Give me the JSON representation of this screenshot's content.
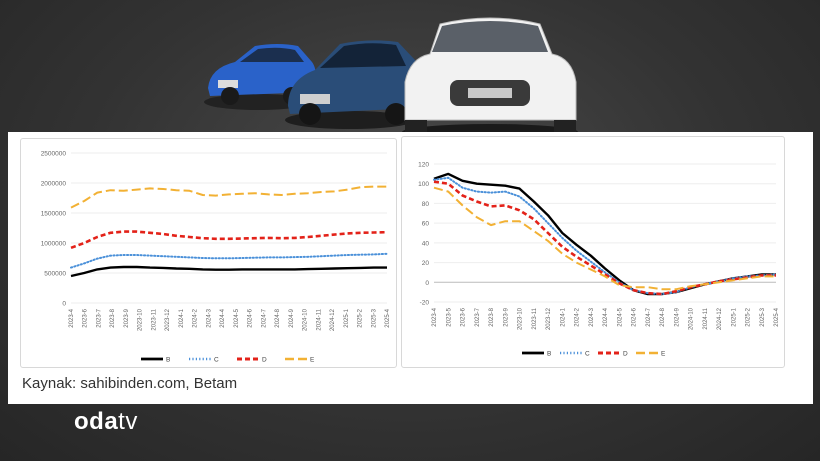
{
  "source_text": "Kaynak: sahibinden.com, Betam",
  "logo": {
    "part1": "oda",
    "part2": "tv"
  },
  "colors": {
    "B": "#000000",
    "C": "#4a90d9",
    "D": "#e32219",
    "E": "#f2b134"
  },
  "chart_data": [
    {
      "type": "line",
      "title": "",
      "x": [
        "2023-4",
        "2023-5",
        "2023-6",
        "2023-7",
        "2023-8",
        "2023-9",
        "2023-10",
        "2023-11",
        "2023-12",
        "2024-1",
        "2024-2",
        "2024-3",
        "2024-4",
        "2024-5",
        "2024-6",
        "2024-7",
        "2024-8",
        "2024-9",
        "2024-10",
        "2024-11",
        "2024-12",
        "2025-1",
        "2025-2",
        "2025-3",
        "2025-4"
      ],
      "x_tick_labels": [
        "2023-4",
        "2023-6",
        "2023-7",
        "2023-8",
        "2023-9",
        "2023-10",
        "2023-11",
        "2023-12",
        "2024-1",
        "2024-2",
        "2024-3",
        "2024-4",
        "2024-5",
        "2024-6",
        "2024-7",
        "2024-8",
        "2024-9",
        "2024-10",
        "2024-11",
        "2024-12",
        "2025-1",
        "2025-2",
        "2025-3",
        "2025-4"
      ],
      "yticks": [
        "0",
        "500000",
        "1000000",
        "1500000",
        "2000000",
        "2500000"
      ],
      "ylim": [
        0,
        2500000
      ],
      "legend_position": "bottom",
      "series": [
        {
          "name": "B",
          "style": "solid",
          "values": [
            450000,
            500000,
            560000,
            590000,
            600000,
            600000,
            590000,
            585000,
            575000,
            570000,
            560000,
            555000,
            555000,
            560000,
            560000,
            560000,
            560000,
            560000,
            565000,
            570000,
            575000,
            580000,
            585000,
            590000,
            590000
          ]
        },
        {
          "name": "C",
          "style": "dotted",
          "values": [
            590000,
            660000,
            740000,
            790000,
            800000,
            800000,
            790000,
            780000,
            770000,
            760000,
            750000,
            745000,
            745000,
            750000,
            755000,
            760000,
            760000,
            765000,
            770000,
            780000,
            790000,
            800000,
            805000,
            810000,
            820000
          ]
        },
        {
          "name": "D",
          "style": "dashed",
          "values": [
            920000,
            1000000,
            1100000,
            1170000,
            1190000,
            1190000,
            1170000,
            1150000,
            1120000,
            1100000,
            1080000,
            1070000,
            1070000,
            1075000,
            1080000,
            1085000,
            1080000,
            1085000,
            1100000,
            1120000,
            1140000,
            1160000,
            1170000,
            1175000,
            1180000
          ]
        },
        {
          "name": "E",
          "style": "longdash",
          "values": [
            1590000,
            1700000,
            1840000,
            1880000,
            1870000,
            1890000,
            1910000,
            1900000,
            1880000,
            1870000,
            1800000,
            1790000,
            1810000,
            1820000,
            1830000,
            1810000,
            1800000,
            1820000,
            1830000,
            1850000,
            1860000,
            1890000,
            1930000,
            1940000,
            1940000
          ]
        }
      ]
    },
    {
      "type": "line",
      "title": "",
      "x": [
        "2023-4",
        "2023-5",
        "2023-6",
        "2023-7",
        "2023-8",
        "2023-9",
        "2023-10",
        "2023-11",
        "2023-12",
        "2024-1",
        "2024-2",
        "2024-3",
        "2024-4",
        "2024-5",
        "2024-6",
        "2024-7",
        "2024-8",
        "2024-9",
        "2024-10",
        "2024-11",
        "2024-12",
        "2025-1",
        "2025-2",
        "2025-3",
        "2025-4"
      ],
      "x_tick_labels": [
        "2023-4",
        "2023-5",
        "2023-6",
        "2023-7",
        "2023-8",
        "2023-9",
        "2023-10",
        "2023-11",
        "2023-12",
        "2024-1",
        "2024-2",
        "2024-3",
        "2024-4",
        "2024-5",
        "2024-6",
        "2024-7",
        "2024-8",
        "2024-9",
        "2024-10",
        "2024-11",
        "2024-12",
        "2025-1",
        "2025-2",
        "2025-3",
        "2025-4"
      ],
      "yticks": [
        "-20",
        "0",
        "20",
        "40",
        "60",
        "80",
        "100",
        "120"
      ],
      "ylim": [
        -20,
        120
      ],
      "legend_position": "bottom",
      "series": [
        {
          "name": "B",
          "style": "solid",
          "values": [
            105,
            110,
            103,
            100,
            99,
            98,
            95,
            82,
            68,
            50,
            38,
            27,
            14,
            2,
            -8,
            -12,
            -12,
            -10,
            -6,
            -2,
            1,
            4,
            6,
            8,
            8
          ]
        },
        {
          "name": "C",
          "style": "dotted",
          "values": [
            104,
            106,
            96,
            92,
            91,
            92,
            87,
            75,
            60,
            45,
            32,
            21,
            10,
            0,
            -8,
            -11,
            -12,
            -10,
            -5,
            -2,
            1,
            4,
            6,
            7,
            8
          ]
        },
        {
          "name": "D",
          "style": "dashed",
          "values": [
            102,
            100,
            88,
            82,
            77,
            78,
            73,
            64,
            50,
            36,
            26,
            17,
            8,
            -1,
            -8,
            -11,
            -12,
            -9,
            -5,
            -2,
            1,
            3,
            5,
            7,
            7
          ]
        },
        {
          "name": "E",
          "style": "longdash",
          "values": [
            96,
            92,
            78,
            66,
            58,
            62,
            62,
            52,
            42,
            29,
            20,
            13,
            6,
            -3,
            -5,
            -5,
            -7,
            -7,
            -4,
            -2,
            0,
            2,
            4,
            6,
            6
          ]
        }
      ]
    }
  ]
}
